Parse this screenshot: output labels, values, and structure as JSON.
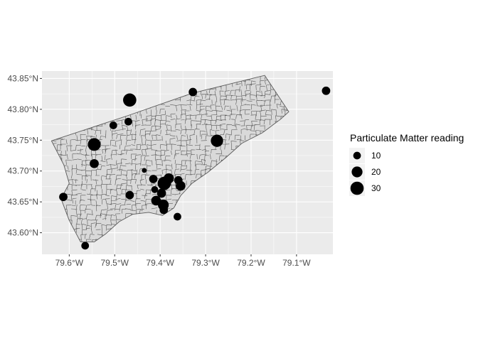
{
  "chart_data": {
    "type": "scatter",
    "subtype": "proportional-symbol map",
    "title": "",
    "xlabel": "",
    "ylabel": "",
    "xlim": [
      -79.66,
      -79.02
    ],
    "ylim": [
      43.565,
      43.862
    ],
    "x_ticks": [
      {
        "value": -79.6,
        "label": "79.6°W"
      },
      {
        "value": -79.5,
        "label": "79.5°W"
      },
      {
        "value": -79.4,
        "label": "79.4°W"
      },
      {
        "value": -79.3,
        "label": "79.3°W"
      },
      {
        "value": -79.2,
        "label": "79.2°W"
      },
      {
        "value": -79.1,
        "label": "79.1°W"
      }
    ],
    "y_ticks": [
      {
        "value": 43.6,
        "label": "43.60°N"
      },
      {
        "value": 43.65,
        "label": "43.65°N"
      },
      {
        "value": 43.7,
        "label": "43.70°N"
      },
      {
        "value": 43.75,
        "label": "43.75°N"
      },
      {
        "value": 43.8,
        "label": "43.80°N"
      },
      {
        "value": 43.85,
        "label": "43.85°N"
      }
    ],
    "grid": true,
    "colors": {
      "panel": "#ebebeb",
      "grid": "#ffffff",
      "boundary": "#595959",
      "region_fill": "#d9d9d9",
      "point": "#000000"
    },
    "boundary_outline": [
      [
        -79.639,
        43.749
      ],
      [
        -79.47,
        43.79
      ],
      [
        -79.33,
        43.826
      ],
      [
        -79.17,
        43.855
      ],
      [
        -79.117,
        43.796
      ],
      [
        -79.135,
        43.784
      ],
      [
        -79.175,
        43.762
      ],
      [
        -79.22,
        43.745
      ],
      [
        -79.255,
        43.722
      ],
      [
        -79.295,
        43.698
      ],
      [
        -79.33,
        43.68
      ],
      [
        -79.355,
        43.66
      ],
      [
        -79.37,
        43.64
      ],
      [
        -79.395,
        43.628
      ],
      [
        -79.425,
        43.633
      ],
      [
        -79.46,
        43.63
      ],
      [
        -79.49,
        43.618
      ],
      [
        -79.52,
        43.598
      ],
      [
        -79.545,
        43.585
      ],
      [
        -79.575,
        43.585
      ],
      [
        -79.6,
        43.62
      ],
      [
        -79.618,
        43.655
      ],
      [
        -79.6,
        43.68
      ],
      [
        -79.612,
        43.71
      ],
      [
        -79.639,
        43.749
      ]
    ],
    "legend": {
      "title": "Particulate Matter reading",
      "position": "right",
      "entries": [
        {
          "label": "10",
          "value": 10
        },
        {
          "label": "20",
          "value": 20
        },
        {
          "label": "30",
          "value": 30
        }
      ]
    },
    "points": [
      {
        "lon": -79.467,
        "lat": 43.815,
        "pm": 30
      },
      {
        "lon": -79.545,
        "lat": 43.743,
        "pm": 28
      },
      {
        "lon": -79.275,
        "lat": 43.749,
        "pm": 26
      },
      {
        "lon": -79.391,
        "lat": 43.68,
        "pm": 30
      },
      {
        "lon": -79.381,
        "lat": 43.688,
        "pm": 18
      },
      {
        "lon": -79.393,
        "lat": 43.645,
        "pm": 20
      },
      {
        "lon": -79.409,
        "lat": 43.652,
        "pm": 16
      },
      {
        "lon": -79.397,
        "lat": 43.664,
        "pm": 14
      },
      {
        "lon": -79.355,
        "lat": 43.676,
        "pm": 16
      },
      {
        "lon": -79.36,
        "lat": 43.685,
        "pm": 12
      },
      {
        "lon": -79.545,
        "lat": 43.712,
        "pm": 14
      },
      {
        "lon": -79.328,
        "lat": 43.828,
        "pm": 12
      },
      {
        "lon": -79.035,
        "lat": 43.83,
        "pm": 12
      },
      {
        "lon": -79.503,
        "lat": 43.774,
        "pm": 10
      },
      {
        "lon": -79.47,
        "lat": 43.78,
        "pm": 10
      },
      {
        "lon": -79.613,
        "lat": 43.658,
        "pm": 12
      },
      {
        "lon": -79.467,
        "lat": 43.661,
        "pm": 12
      },
      {
        "lon": -79.415,
        "lat": 43.687,
        "pm": 12
      },
      {
        "lon": -79.392,
        "lat": 43.637,
        "pm": 12
      },
      {
        "lon": -79.362,
        "lat": 43.626,
        "pm": 10
      },
      {
        "lon": -79.565,
        "lat": 43.579,
        "pm": 10
      },
      {
        "lon": -79.412,
        "lat": 43.67,
        "pm": 8
      },
      {
        "lon": -79.435,
        "lat": 43.701,
        "pm": 4
      }
    ]
  }
}
